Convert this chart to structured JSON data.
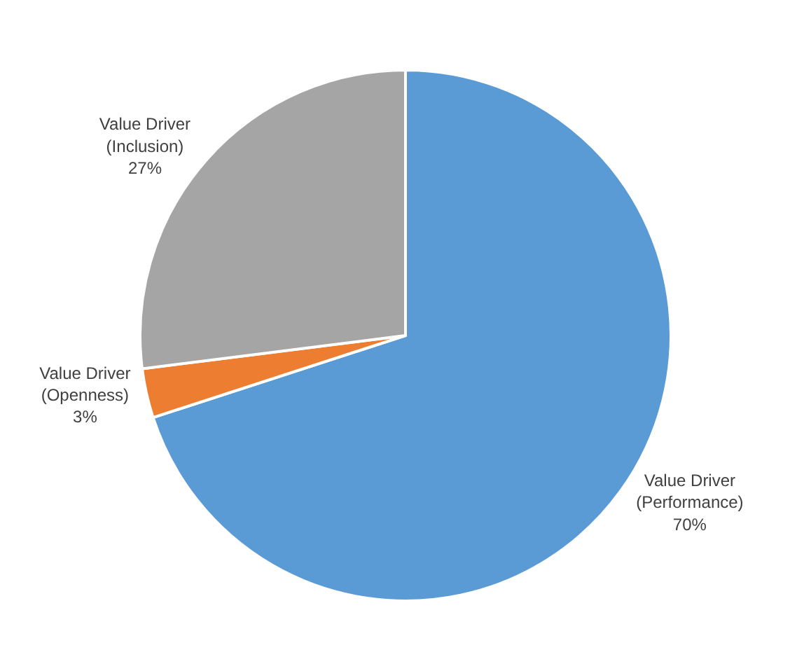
{
  "chart_data": {
    "type": "pie",
    "categories": [
      "Value Driver\n(Performance)",
      "Value Driver\n(Openness)",
      "Value Driver\n(Inclusion)"
    ],
    "values": [
      70,
      3,
      27
    ],
    "value_labels": [
      "70%",
      "3%",
      "27%"
    ],
    "colors": [
      "#5b9bd5",
      "#ed7d31",
      "#a5a5a5"
    ],
    "legend": false
  }
}
